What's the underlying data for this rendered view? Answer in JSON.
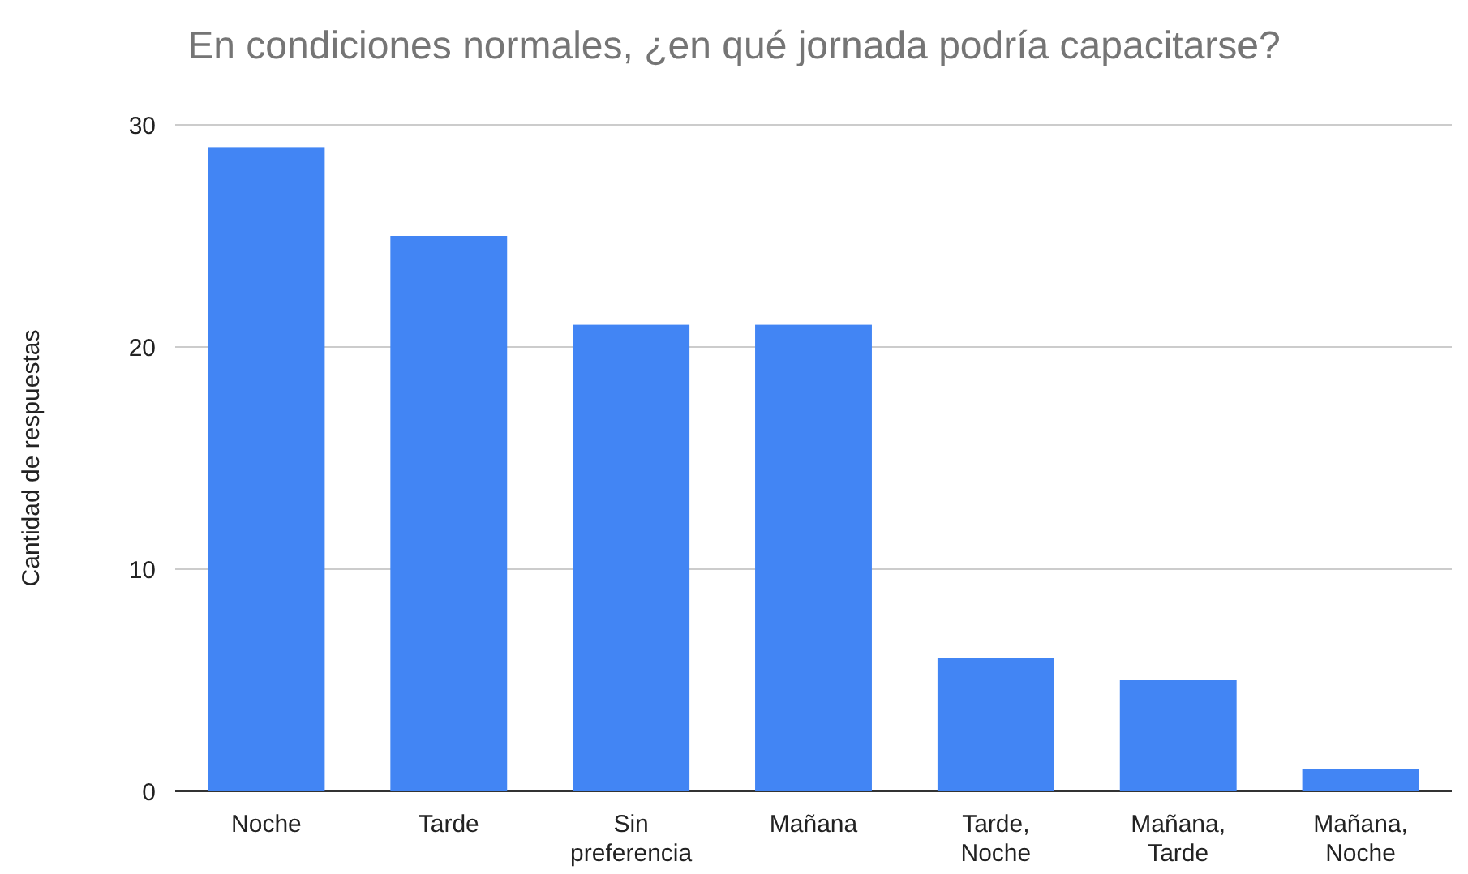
{
  "chart_data": {
    "type": "bar",
    "title": "En condiciones normales, ¿en qué jornada podría capacitarse?",
    "ylabel": "Cantidad de respuestas",
    "categories": [
      "Noche",
      "Tarde",
      "Sin preferencia",
      "Mañana",
      "Tarde, Noche",
      "Mañana, Tarde",
      "Mañana, Noche"
    ],
    "values": [
      29,
      25,
      21,
      21,
      6,
      5,
      1
    ],
    "color": "#4285f4",
    "ylim": [
      0,
      30
    ],
    "yticks": [
      0,
      10,
      20,
      30
    ],
    "grid": "y"
  }
}
